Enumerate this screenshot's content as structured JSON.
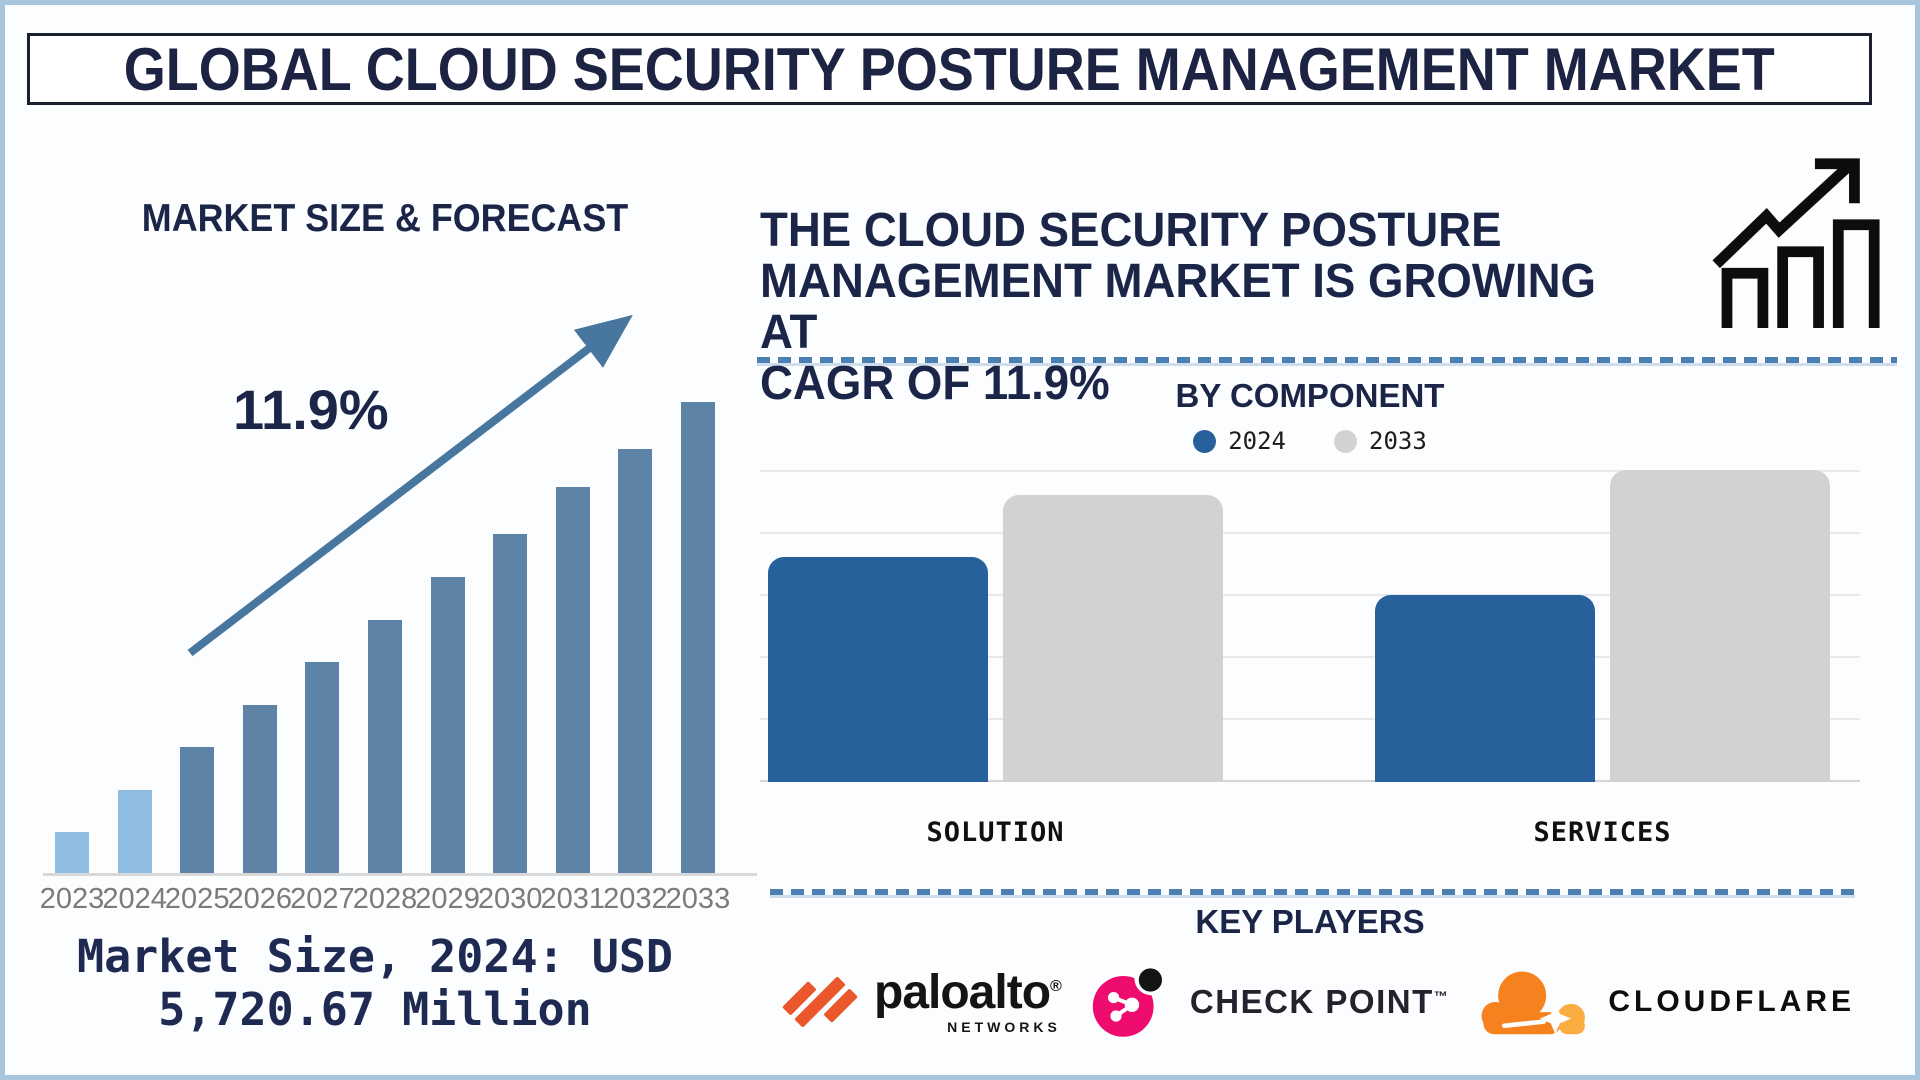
{
  "page": {
    "title": "GLOBAL CLOUD SECURITY POSTURE MANAGEMENT MARKET",
    "background": "#fbfdfe",
    "frame_color": "#a9c6dd",
    "accent_navy": "#1b2547",
    "dashed_line_color": "#4c80b2"
  },
  "left_panel": {
    "section_title": "MARKET SIZE & FORECAST",
    "growth_label": "11.9%",
    "caption_lines": [
      "Market Size, 2024: USD",
      "5,720.67 Million"
    ]
  },
  "right_panel": {
    "headline_lines": [
      "THE CLOUD SECURITY POSTURE",
      "MANAGEMENT MARKET IS GROWING AT",
      "CAGR OF 11.9%"
    ],
    "by_component_title": "BY COMPONENT",
    "key_players_title": "KEY PLAYERS",
    "key_players": [
      {
        "name": "paloalto",
        "sub": "NETWORKS",
        "mark": "®",
        "brand_color": "#e9572b"
      },
      {
        "name": "CHECK POINT",
        "sub": "",
        "mark": "™",
        "brand_color": "#ee0c6e"
      },
      {
        "name": "CLOUDFLARE",
        "sub": "",
        "mark": "",
        "brand_color": "#f6821f"
      }
    ]
  },
  "chart_data": [
    {
      "type": "bar",
      "title": "MARKET SIZE & FORECAST",
      "categories": [
        "2023",
        "2024",
        "2025",
        "2026",
        "2027",
        "2028",
        "2029",
        "2030",
        "2031",
        "2032",
        "2033"
      ],
      "values_relative_pct": [
        9,
        18,
        27,
        36,
        45,
        54,
        63,
        72,
        82,
        90,
        100
      ],
      "note": "No numeric axis shown; bar heights estimated as percent of tallest (2033) bar",
      "annotation": "11.9% CAGR growth arrow",
      "known_point": {
        "label": "Market Size, 2024",
        "value_usd_million": 5720.67
      },
      "bar_color": "#5d83a6",
      "highlight_years": [
        "2023",
        "2024"
      ],
      "highlight_color": "#8fbce1",
      "xlabel": "",
      "ylabel": "",
      "grid": false,
      "legend_position": "none"
    },
    {
      "type": "bar",
      "title": "BY COMPONENT",
      "categories": [
        "SOLUTION",
        "SERVICES"
      ],
      "series": [
        {
          "name": "2024",
          "color": "#26619c",
          "values_relative_pct": [
            72,
            60
          ]
        },
        {
          "name": "2033",
          "color": "#d2d2d2",
          "values_relative_pct": [
            92,
            100
          ]
        }
      ],
      "note": "No numeric axis shown; values are percent of plot height (tallest bar = Services 2033)",
      "xlabel": "",
      "ylabel": "",
      "grid": true,
      "legend_position": "top"
    }
  ]
}
